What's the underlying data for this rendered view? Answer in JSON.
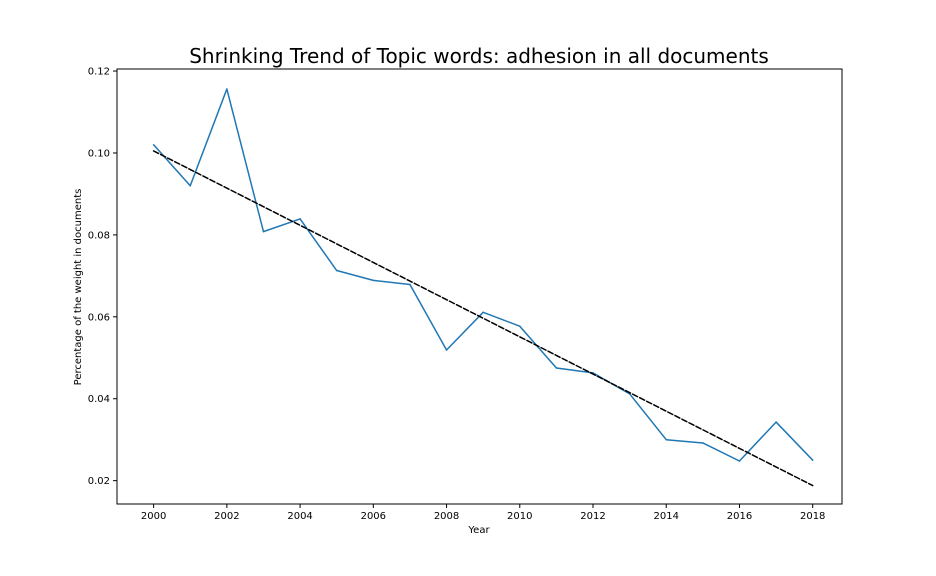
{
  "chart_data": {
    "type": "line",
    "title": "Shrinking Trend of Topic words: adhesion in all documents",
    "xlabel": "Year",
    "ylabel": "Percentage of the weight in documents",
    "xlim": [
      1999,
      2018.8
    ],
    "ylim": [
      0.0143,
      0.1205
    ],
    "x_ticks": [
      2000,
      2002,
      2004,
      2006,
      2008,
      2010,
      2012,
      2014,
      2016,
      2018
    ],
    "y_ticks": [
      0.02,
      0.04,
      0.06,
      0.08,
      0.1,
      0.12
    ],
    "y_tick_labels": [
      "0.02",
      "0.04",
      "0.06",
      "0.08",
      "0.10",
      "0.12"
    ],
    "grid": false,
    "series": [
      {
        "style": "solid",
        "color": "#1f77b4",
        "x": [
          2000,
          2001,
          2002,
          2003,
          2004,
          2005,
          2006,
          2007,
          2008,
          2009,
          2010,
          2011,
          2012,
          2013,
          2014,
          2015,
          2016,
          2017,
          2018
        ],
        "y": [
          0.102,
          0.092,
          0.1156,
          0.0808,
          0.0839,
          0.0713,
          0.0689,
          0.0679,
          0.0519,
          0.0611,
          0.0577,
          0.0475,
          0.0463,
          0.0412,
          0.03,
          0.0292,
          0.0248,
          0.0343,
          0.025
        ]
      },
      {
        "style": "dashed",
        "color": "#000000",
        "x": [
          2000,
          2018
        ],
        "y": [
          0.1005,
          0.0188
        ]
      }
    ]
  }
}
